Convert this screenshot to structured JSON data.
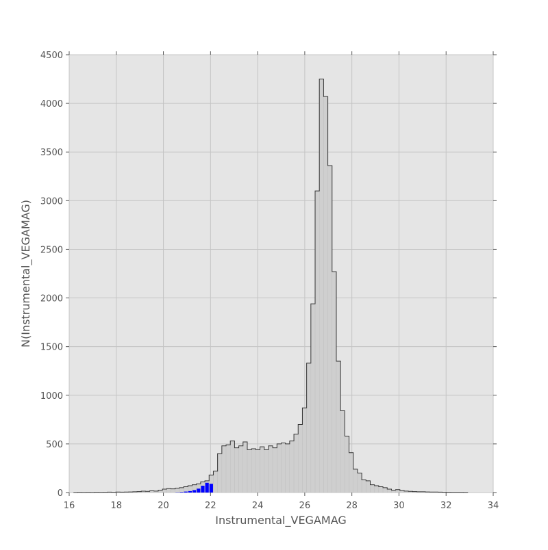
{
  "chart_data": {
    "type": "bar",
    "xlabel": "Instrumental_VEGAMAG",
    "ylabel": "N(Instrumental_VEGAMAG)",
    "xlim": [
      16,
      34
    ],
    "ylim": [
      0,
      4500
    ],
    "xticks": [
      "16",
      "18",
      "20",
      "22",
      "24",
      "26",
      "28",
      "30",
      "32",
      "34"
    ],
    "yticks": [
      "0",
      "500",
      "1000",
      "1500",
      "2000",
      "2500",
      "3000",
      "3500",
      "4000",
      "4500"
    ],
    "grid": true,
    "bin_width": 0.18,
    "colors": {
      "plot_bg": "#e5e5e5",
      "grid": "#c4c4c4",
      "main_fill": "#cfcfcf",
      "main_edge": "#333333",
      "subset_fill": "#0000ff",
      "text": "#555555"
    },
    "series": [
      {
        "style": "step-filled",
        "x": [
          16.27,
          16.45,
          16.63,
          16.81,
          16.99,
          17.17,
          17.35,
          17.53,
          17.71,
          17.89,
          18.07,
          18.25,
          18.43,
          18.61,
          18.79,
          18.97,
          19.15,
          19.33,
          19.51,
          19.69,
          19.87,
          20.05,
          20.23,
          20.41,
          20.59,
          20.77,
          20.95,
          21.13,
          21.31,
          21.49,
          21.67,
          21.85,
          22.03,
          22.21,
          22.39,
          22.57,
          22.75,
          22.93,
          23.11,
          23.29,
          23.47,
          23.65,
          23.83,
          24.01,
          24.19,
          24.37,
          24.55,
          24.73,
          24.91,
          25.09,
          25.27,
          25.45,
          25.63,
          25.81,
          25.99,
          26.17,
          26.35,
          26.53,
          26.71,
          26.89,
          27.07,
          27.25,
          27.43,
          27.61,
          27.79,
          27.97,
          28.15,
          28.33,
          28.51,
          28.69,
          28.87,
          29.05,
          29.23,
          29.41,
          29.59,
          29.77,
          29.95,
          30.13,
          30.31,
          30.49,
          30.67,
          30.85,
          31.03,
          31.21,
          31.39,
          31.57,
          31.75,
          31.93,
          32.11,
          32.29,
          32.47,
          32.65,
          32.83
        ],
        "values": [
          0,
          2,
          1,
          2,
          1,
          3,
          2,
          3,
          4,
          3,
          5,
          4,
          5,
          6,
          8,
          10,
          14,
          12,
          18,
          15,
          25,
          35,
          40,
          38,
          45,
          50,
          60,
          70,
          80,
          90,
          110,
          120,
          180,
          220,
          400,
          480,
          490,
          530,
          460,
          480,
          520,
          440,
          450,
          440,
          470,
          440,
          480,
          460,
          500,
          510,
          500,
          530,
          600,
          700,
          870,
          1330,
          1940,
          3100,
          4250,
          4070,
          3360,
          2270,
          1350,
          840,
          580,
          410,
          240,
          200,
          130,
          120,
          80,
          70,
          60,
          50,
          35,
          25,
          30,
          20,
          15,
          12,
          10,
          8,
          8,
          6,
          5,
          5,
          4,
          3,
          3,
          2,
          2,
          2,
          1
        ],
        "note_values": "counts per bin"
      },
      {
        "style": "bar-filled",
        "x": [
          20.59,
          20.77,
          20.95,
          21.13,
          21.31,
          21.49,
          21.67,
          21.85,
          22.03
        ],
        "values": [
          2,
          5,
          10,
          15,
          25,
          40,
          70,
          100,
          90
        ]
      }
    ]
  }
}
